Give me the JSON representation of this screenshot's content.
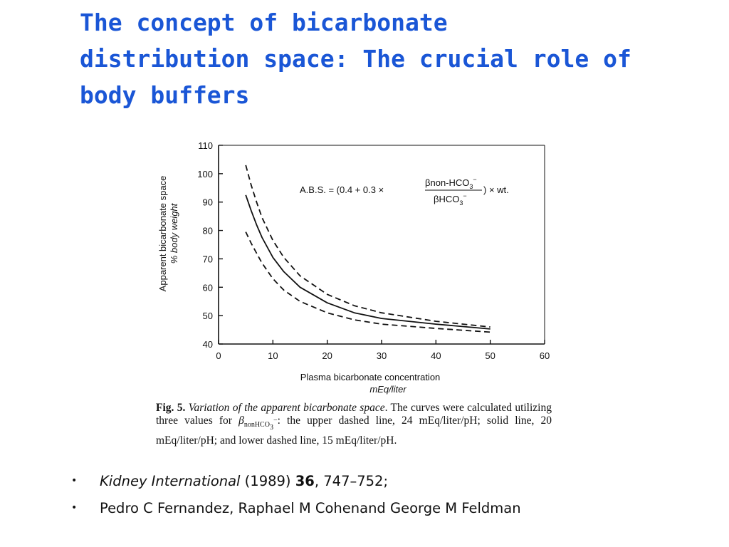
{
  "slide": {
    "title_lines": [
      "The concept of bicarbonate",
      "distribution space: The crucial role of",
      "body buffers"
    ]
  },
  "chart_data": {
    "type": "line",
    "ylabel_lines": [
      "Apparent bicarbonate space",
      "% body weight"
    ],
    "xlabel_lines": [
      "Plasma bicarbonate concentration",
      "mEq/liter"
    ],
    "xlim": [
      0,
      60
    ],
    "ylim": [
      40,
      110
    ],
    "x_ticks": [
      "0",
      "10",
      "20",
      "30",
      "40",
      "50",
      "60"
    ],
    "y_ticks": [
      "40",
      "50",
      "60",
      "70",
      "80",
      "90",
      "100",
      "110"
    ],
    "formula": {
      "lhs": "A.B.S. = (0.4 + 0.3 ×",
      "numerator": "βnon-HCO",
      "denominator": "βHCO",
      "rhs": ") × wt."
    },
    "series": [
      {
        "style": "dashed",
        "beta": 24,
        "x": [
          5,
          6,
          7,
          8,
          10,
          12,
          15,
          20,
          25,
          30,
          40,
          50
        ],
        "y": [
          103,
          96,
          90,
          84.5,
          76.5,
          70.5,
          64,
          57.5,
          53.5,
          51,
          48,
          46
        ]
      },
      {
        "style": "solid",
        "beta": 20,
        "x": [
          5,
          6,
          7,
          8,
          10,
          12,
          15,
          20,
          25,
          30,
          40,
          50
        ],
        "y": [
          92.5,
          87,
          82,
          77.5,
          70.5,
          65.5,
          60,
          54.5,
          51,
          49,
          47,
          45.3
        ]
      },
      {
        "style": "dashed",
        "beta": 15,
        "x": [
          5,
          6,
          7,
          8,
          10,
          12,
          15,
          20,
          25,
          30,
          40,
          50
        ],
        "y": [
          79.5,
          75.5,
          72,
          68.5,
          63,
          59,
          55,
          51,
          48.5,
          47,
          45.5,
          44.2
        ]
      }
    ]
  },
  "caption": {
    "fig_label": "Fig. 5.",
    "italic_text": "Variation of the apparent bicarbonate space",
    "text_a": ". The curves were calculated utilizing three values for ",
    "beta_symbol": "β",
    "beta_subscript": "nonHCO",
    "text_b": ": the upper dashed line, 24 mEq/liter/pH; solid line, 20 mEq/liter/pH; and lower dashed line, 15 mEq/liter/pH."
  },
  "references": {
    "bullet": "•",
    "journal": "Kidney International",
    "year": " (1989) ",
    "volume": "36",
    "pages": ", 747–752;",
    "authors": "Pedro C Fernandez, Raphael M Cohenand George M Feldman"
  }
}
